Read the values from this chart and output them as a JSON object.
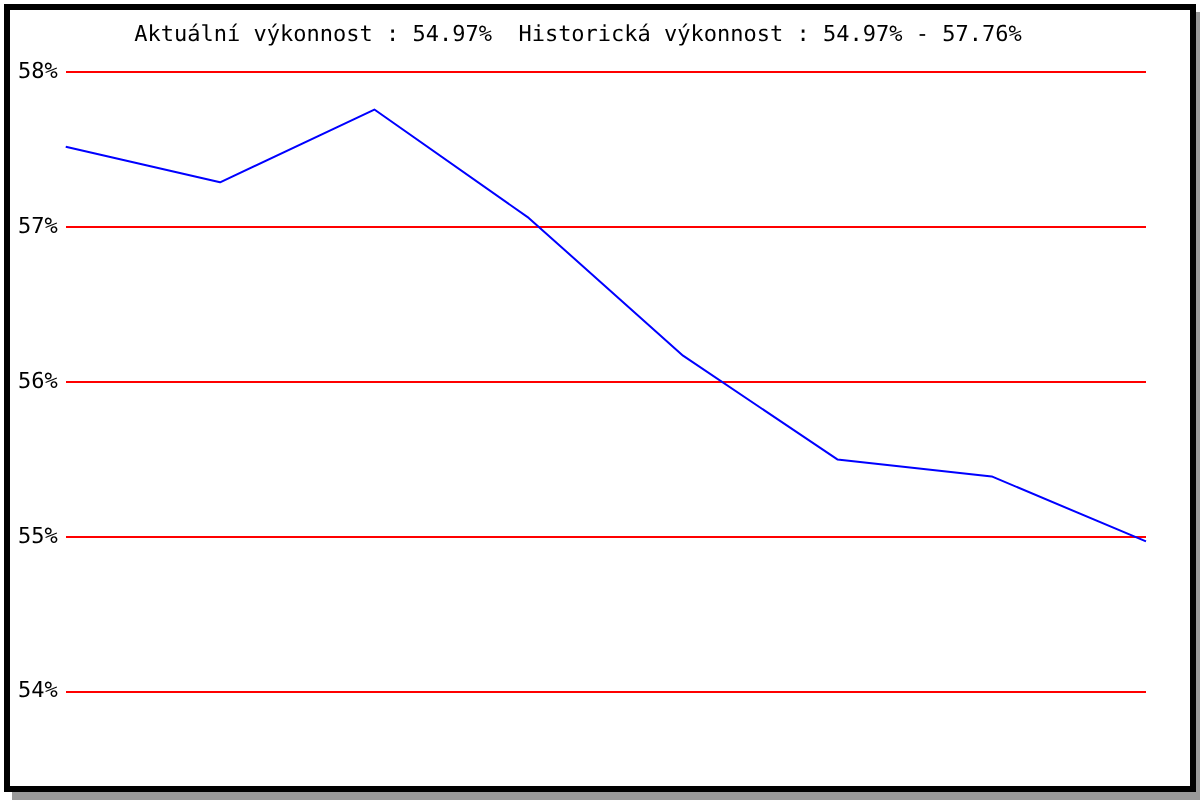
{
  "chart_data": {
    "type": "line",
    "title": "Aktuální výkonnost : 54.97%  Historická výkonnost : 54.97% - 57.76%",
    "categories": [
      null,
      null,
      null,
      null,
      null,
      null,
      null,
      null
    ],
    "series": [
      {
        "color": "#0000ff",
        "values": [
          57.52,
          57.29,
          57.76,
          57.06,
          56.17,
          55.5,
          55.39,
          54.97
        ]
      }
    ],
    "ylim": [
      54,
      58
    ],
    "yticks": [
      {
        "value": 54,
        "label": "54%"
      },
      {
        "value": 55,
        "label": "55%"
      },
      {
        "value": 56,
        "label": "56%"
      },
      {
        "value": 57,
        "label": "57%"
      },
      {
        "value": 58,
        "label": "58%"
      }
    ],
    "grid": "y",
    "legend": false,
    "marker": "none",
    "line_style": "solid"
  }
}
